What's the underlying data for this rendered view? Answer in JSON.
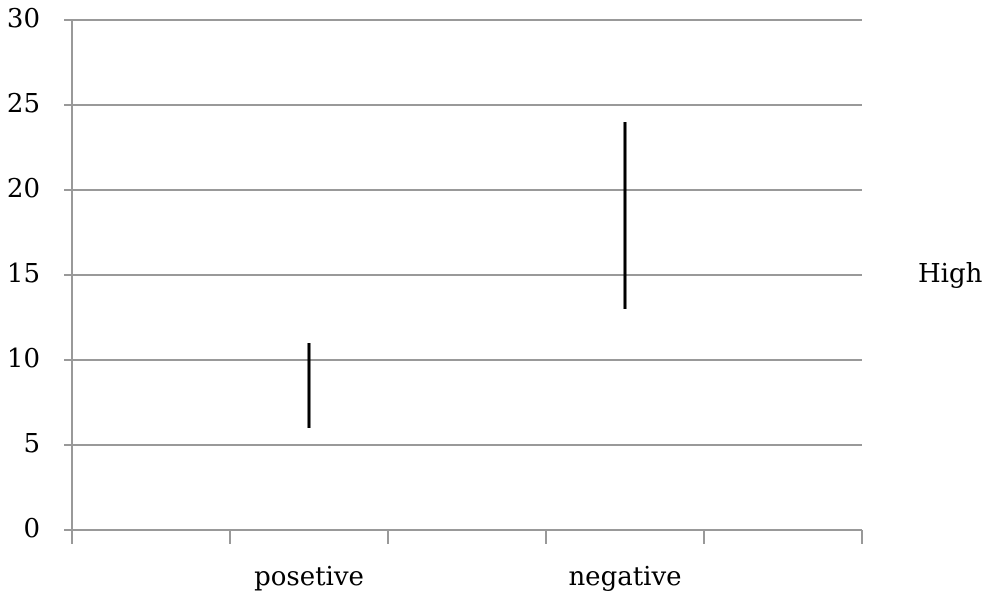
{
  "chart_data": {
    "type": "hilo",
    "categories": [
      null,
      "posetive",
      null,
      "negative",
      null
    ],
    "series": [
      {
        "name": "High",
        "color": "#000000",
        "values": [
          null,
          11,
          null,
          24,
          null
        ],
        "low": [
          null,
          6,
          null,
          13,
          null
        ]
      }
    ],
    "ylim": [
      0,
      30
    ],
    "yticks": [
      0,
      5,
      10,
      15,
      20,
      25,
      30
    ],
    "grid": true,
    "legend": "right"
  }
}
